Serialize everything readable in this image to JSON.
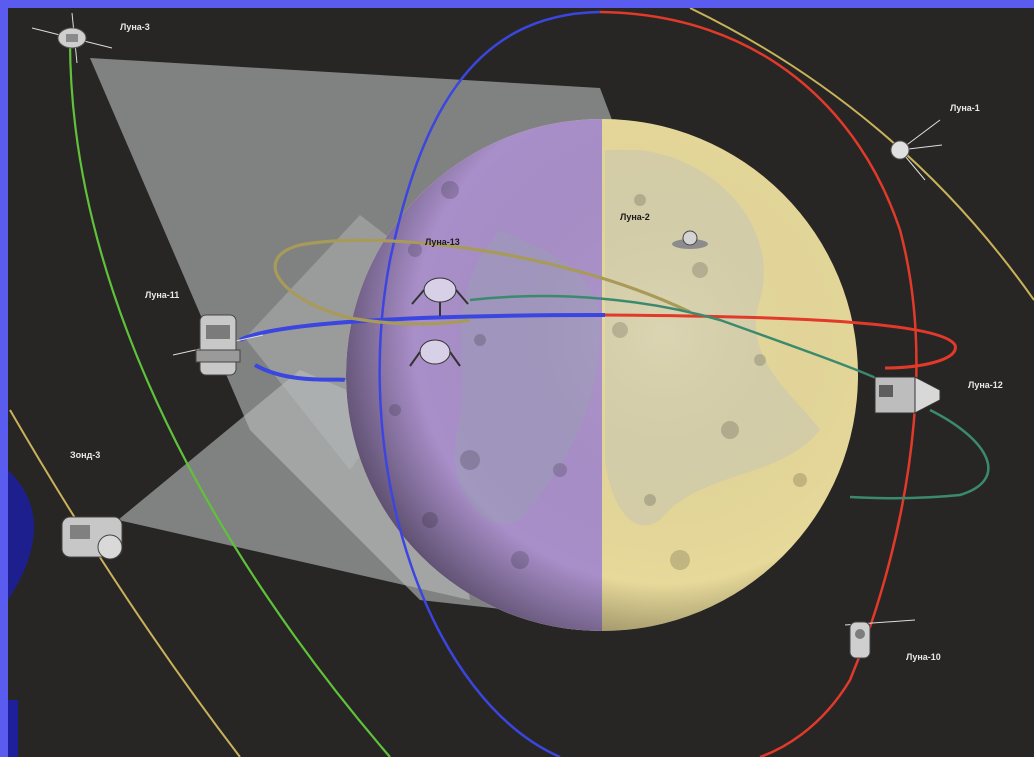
{
  "labels": {
    "luna_3": "Луна-3",
    "luna_1": "Луна-1",
    "luna_2": "Луна-2",
    "luna_13": "Луна-13",
    "luna_11": "Луна-11",
    "luna_12": "Луна-12",
    "zond_3": "Зонд-3",
    "luna_10": "Луна-10"
  },
  "colors": {
    "frame": "#5a5cf0",
    "space": "#272624",
    "moon_far_side": "#a98fc9",
    "moon_near_side": "#e7d99a",
    "camera_cone": "#b8bcbc",
    "orbit_green": "#5fc23a",
    "orbit_blue": "#3b46e0",
    "orbit_red": "#e13a2a",
    "orbit_teal": "#3b8a6e",
    "orbit_olive": "#a89a58",
    "orbit_gold": "#c9b25a"
  }
}
